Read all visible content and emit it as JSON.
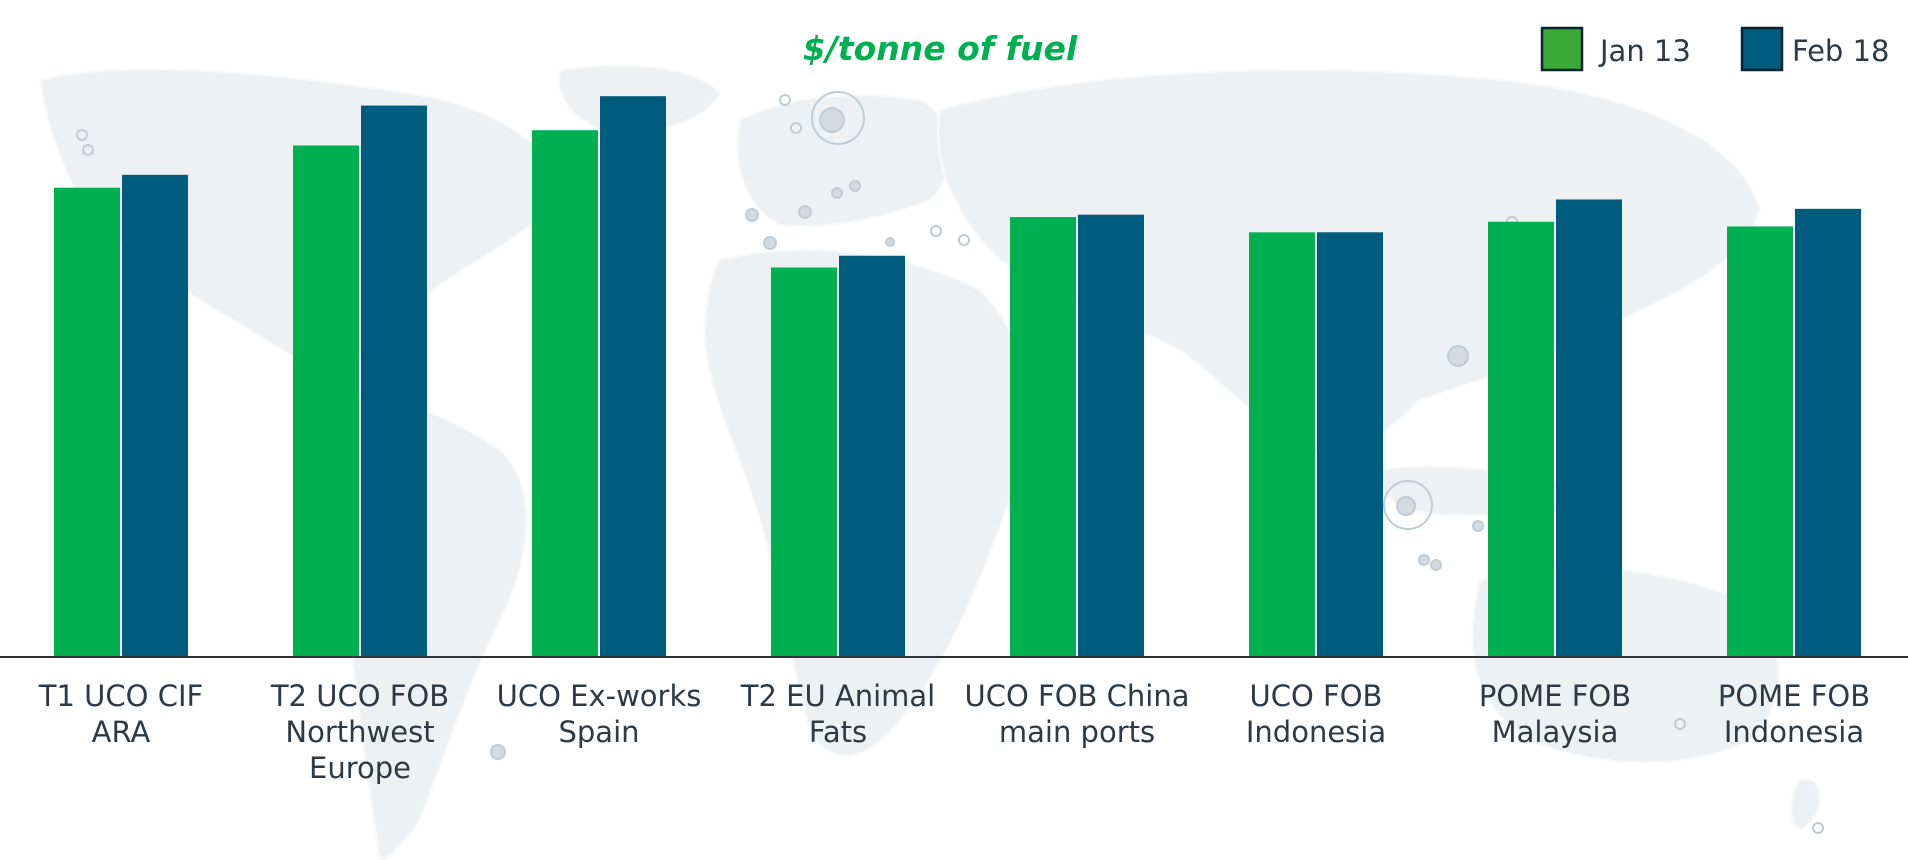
{
  "chart_data": {
    "type": "bar",
    "title": "$/tonne of fuel",
    "categories": [
      [
        "T1 UCO CIF",
        "ARA"
      ],
      [
        "T2 UCO FOB",
        "Northwest",
        "Europe"
      ],
      [
        "UCO Ex-works",
        "Spain"
      ],
      [
        "T2 EU Animal",
        "Fats"
      ],
      [
        "UCO FOB China",
        "main ports"
      ],
      [
        "UCO FOB",
        "Indonesia"
      ],
      [
        "POME FOB",
        "Malaysia"
      ],
      [
        "POME FOB",
        "Indonesia"
      ]
    ],
    "series": [
      {
        "name": "Jan 13",
        "color": "#00b050",
        "values": [
          400,
          436,
          449,
          332,
          375,
          362,
          371,
          367
        ]
      },
      {
        "name": "Feb 18",
        "color": "#005c7e",
        "values": [
          411,
          470,
          478,
          342,
          377,
          362,
          390,
          382
        ]
      }
    ],
    "ylim": [
      0,
      560
    ],
    "grid": false,
    "legend_position": "top-right",
    "legend_swatch_colors": [
      "#3aa935",
      "#005c7e"
    ],
    "title_color": "#00b050",
    "background": "faint world map"
  }
}
